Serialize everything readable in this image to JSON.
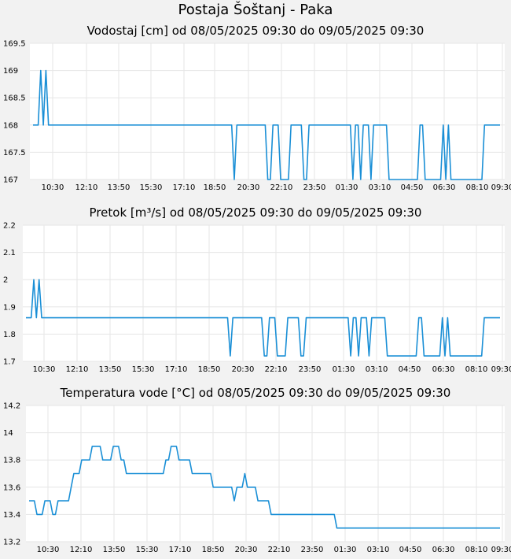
{
  "page_title": "Postaja Šoštanj - Paka",
  "chart_data": [
    {
      "type": "line",
      "title": "Vodostaj [cm] od 08/05/2025 09:30 do 09/05/2025 09:30",
      "ylim": [
        167,
        169.5
      ],
      "y_ticks": [
        "169.5",
        "169",
        "168.5",
        "168",
        "167.5",
        "167"
      ],
      "x_tick_labels": [
        "10:30",
        "12:10",
        "13:50",
        "15:30",
        "17:10",
        "18:50",
        "20:30",
        "22:10",
        "23:50",
        "01:30",
        "03:10",
        "04:50",
        "06:30",
        "08:10",
        "09:30"
      ],
      "grid": true,
      "line_color": "#1a8fd6",
      "series": [
        {
          "values": [
            168,
            168,
            168,
            169,
            168,
            169,
            168,
            168,
            168,
            168,
            168,
            168,
            168,
            168,
            168,
            168,
            168,
            168,
            168,
            168,
            168,
            168,
            168,
            168,
            168,
            168,
            168,
            168,
            168,
            168,
            168,
            168,
            168,
            168,
            168,
            168,
            168,
            168,
            168,
            168,
            168,
            168,
            168,
            168,
            168,
            168,
            168,
            168,
            168,
            168,
            168,
            168,
            168,
            168,
            168,
            168,
            168,
            168,
            168,
            168,
            168,
            168,
            168,
            168,
            168,
            168,
            168,
            168,
            168,
            168,
            168,
            168,
            168,
            168,
            168,
            168,
            168,
            168,
            167,
            168,
            168,
            168,
            168,
            168,
            168,
            168,
            168,
            168,
            168,
            168,
            168,
            167,
            167,
            168,
            168,
            168,
            167,
            167,
            167,
            167,
            168,
            168,
            168,
            168,
            168,
            167,
            167,
            168,
            168,
            168,
            168,
            168,
            168,
            168,
            168,
            168,
            168,
            168,
            168,
            168,
            168,
            168,
            168,
            168,
            167,
            168,
            168,
            167,
            168,
            168,
            168,
            167,
            168,
            168,
            168,
            168,
            168,
            168,
            167,
            167,
            167,
            167,
            167,
            167,
            167,
            167,
            167,
            167,
            167,
            167,
            168,
            168,
            167,
            167,
            167,
            167,
            167,
            167,
            167,
            168,
            167,
            168,
            167,
            167,
            167,
            167,
            167,
            167,
            167,
            167,
            167,
            167,
            167,
            167,
            167,
            168,
            168,
            168,
            168,
            168,
            168,
            168
          ]
        }
      ]
    },
    {
      "type": "line",
      "title": "Pretok [m³/s] od 08/05/2025 09:30 do 09/05/2025 09:30",
      "ylim": [
        1.7,
        2.2
      ],
      "y_ticks": [
        "2.2",
        "2.1",
        "2",
        "1.9",
        "1.8",
        "1.7"
      ],
      "x_tick_labels": [
        "10:30",
        "12:10",
        "13:50",
        "15:30",
        "17:10",
        "18:50",
        "20:30",
        "22:10",
        "23:50",
        "01:30",
        "03:10",
        "04:50",
        "06:30",
        "08:10",
        "09:30"
      ],
      "grid": true,
      "line_color": "#1a8fd6",
      "series": [
        {
          "values": [
            1.86,
            1.86,
            1.86,
            2,
            1.86,
            2,
            1.86,
            1.86,
            1.86,
            1.86,
            1.86,
            1.86,
            1.86,
            1.86,
            1.86,
            1.86,
            1.86,
            1.86,
            1.86,
            1.86,
            1.86,
            1.86,
            1.86,
            1.86,
            1.86,
            1.86,
            1.86,
            1.86,
            1.86,
            1.86,
            1.86,
            1.86,
            1.86,
            1.86,
            1.86,
            1.86,
            1.86,
            1.86,
            1.86,
            1.86,
            1.86,
            1.86,
            1.86,
            1.86,
            1.86,
            1.86,
            1.86,
            1.86,
            1.86,
            1.86,
            1.86,
            1.86,
            1.86,
            1.86,
            1.86,
            1.86,
            1.86,
            1.86,
            1.86,
            1.86,
            1.86,
            1.86,
            1.86,
            1.86,
            1.86,
            1.86,
            1.86,
            1.86,
            1.86,
            1.86,
            1.86,
            1.86,
            1.86,
            1.86,
            1.86,
            1.86,
            1.86,
            1.86,
            1.72,
            1.86,
            1.86,
            1.86,
            1.86,
            1.86,
            1.86,
            1.86,
            1.86,
            1.86,
            1.86,
            1.86,
            1.86,
            1.72,
            1.72,
            1.86,
            1.86,
            1.86,
            1.72,
            1.72,
            1.72,
            1.72,
            1.86,
            1.86,
            1.86,
            1.86,
            1.86,
            1.72,
            1.72,
            1.86,
            1.86,
            1.86,
            1.86,
            1.86,
            1.86,
            1.86,
            1.86,
            1.86,
            1.86,
            1.86,
            1.86,
            1.86,
            1.86,
            1.86,
            1.86,
            1.86,
            1.72,
            1.86,
            1.86,
            1.72,
            1.86,
            1.86,
            1.86,
            1.72,
            1.86,
            1.86,
            1.86,
            1.86,
            1.86,
            1.86,
            1.72,
            1.72,
            1.72,
            1.72,
            1.72,
            1.72,
            1.72,
            1.72,
            1.72,
            1.72,
            1.72,
            1.72,
            1.86,
            1.86,
            1.72,
            1.72,
            1.72,
            1.72,
            1.72,
            1.72,
            1.72,
            1.86,
            1.72,
            1.86,
            1.72,
            1.72,
            1.72,
            1.72,
            1.72,
            1.72,
            1.72,
            1.72,
            1.72,
            1.72,
            1.72,
            1.72,
            1.72,
            1.86,
            1.86,
            1.86,
            1.86,
            1.86,
            1.86,
            1.86
          ]
        }
      ]
    },
    {
      "type": "line",
      "title": "Temperatura vode [°C] od 08/05/2025 09:30 do 09/05/2025 09:30",
      "ylim": [
        13.2,
        14.2
      ],
      "y_ticks": [
        "14.2",
        "14",
        "13.8",
        "13.6",
        "13.4",
        "13.2"
      ],
      "x_tick_labels": [
        "10:30",
        "12:10",
        "13:50",
        "15:30",
        "17:10",
        "18:50",
        "20:30",
        "22:10",
        "23:50",
        "01:30",
        "03:10",
        "04:50",
        "06:30",
        "08:10",
        "09:30"
      ],
      "grid": true,
      "line_color": "#1a8fd6",
      "series": [
        {
          "values": [
            13.5,
            13.5,
            13.5,
            13.4,
            13.4,
            13.4,
            13.5,
            13.5,
            13.5,
            13.4,
            13.4,
            13.5,
            13.5,
            13.5,
            13.5,
            13.5,
            13.6,
            13.7,
            13.7,
            13.7,
            13.8,
            13.8,
            13.8,
            13.8,
            13.9,
            13.9,
            13.9,
            13.9,
            13.8,
            13.8,
            13.8,
            13.8,
            13.9,
            13.9,
            13.9,
            13.8,
            13.8,
            13.7,
            13.7,
            13.7,
            13.7,
            13.7,
            13.7,
            13.7,
            13.7,
            13.7,
            13.7,
            13.7,
            13.7,
            13.7,
            13.7,
            13.7,
            13.8,
            13.8,
            13.9,
            13.9,
            13.9,
            13.8,
            13.8,
            13.8,
            13.8,
            13.8,
            13.7,
            13.7,
            13.7,
            13.7,
            13.7,
            13.7,
            13.7,
            13.7,
            13.6,
            13.6,
            13.6,
            13.6,
            13.6,
            13.6,
            13.6,
            13.6,
            13.5,
            13.6,
            13.6,
            13.6,
            13.7,
            13.6,
            13.6,
            13.6,
            13.6,
            13.5,
            13.5,
            13.5,
            13.5,
            13.5,
            13.4,
            13.4,
            13.4,
            13.4,
            13.4,
            13.4,
            13.4,
            13.4,
            13.4,
            13.4,
            13.4,
            13.4,
            13.4,
            13.4,
            13.4,
            13.4,
            13.4,
            13.4,
            13.4,
            13.4,
            13.4,
            13.4,
            13.4,
            13.4,
            13.4,
            13.3,
            13.3,
            13.3,
            13.3,
            13.3,
            13.3,
            13.3,
            13.3,
            13.3,
            13.3,
            13.3,
            13.3,
            13.3,
            13.3,
            13.3,
            13.3,
            13.3,
            13.3,
            13.3,
            13.3,
            13.3,
            13.3,
            13.3,
            13.3,
            13.3,
            13.3,
            13.3,
            13.3,
            13.3,
            13.3,
            13.3,
            13.3,
            13.3,
            13.3,
            13.3,
            13.3,
            13.3,
            13.3,
            13.3,
            13.3,
            13.3,
            13.3,
            13.3,
            13.3,
            13.3,
            13.3,
            13.3,
            13.3,
            13.3,
            13.3,
            13.3,
            13.3,
            13.3,
            13.3,
            13.3,
            13.3,
            13.3,
            13.3,
            13.3,
            13.3,
            13.3,
            13.3,
            13.3
          ]
        }
      ]
    }
  ]
}
